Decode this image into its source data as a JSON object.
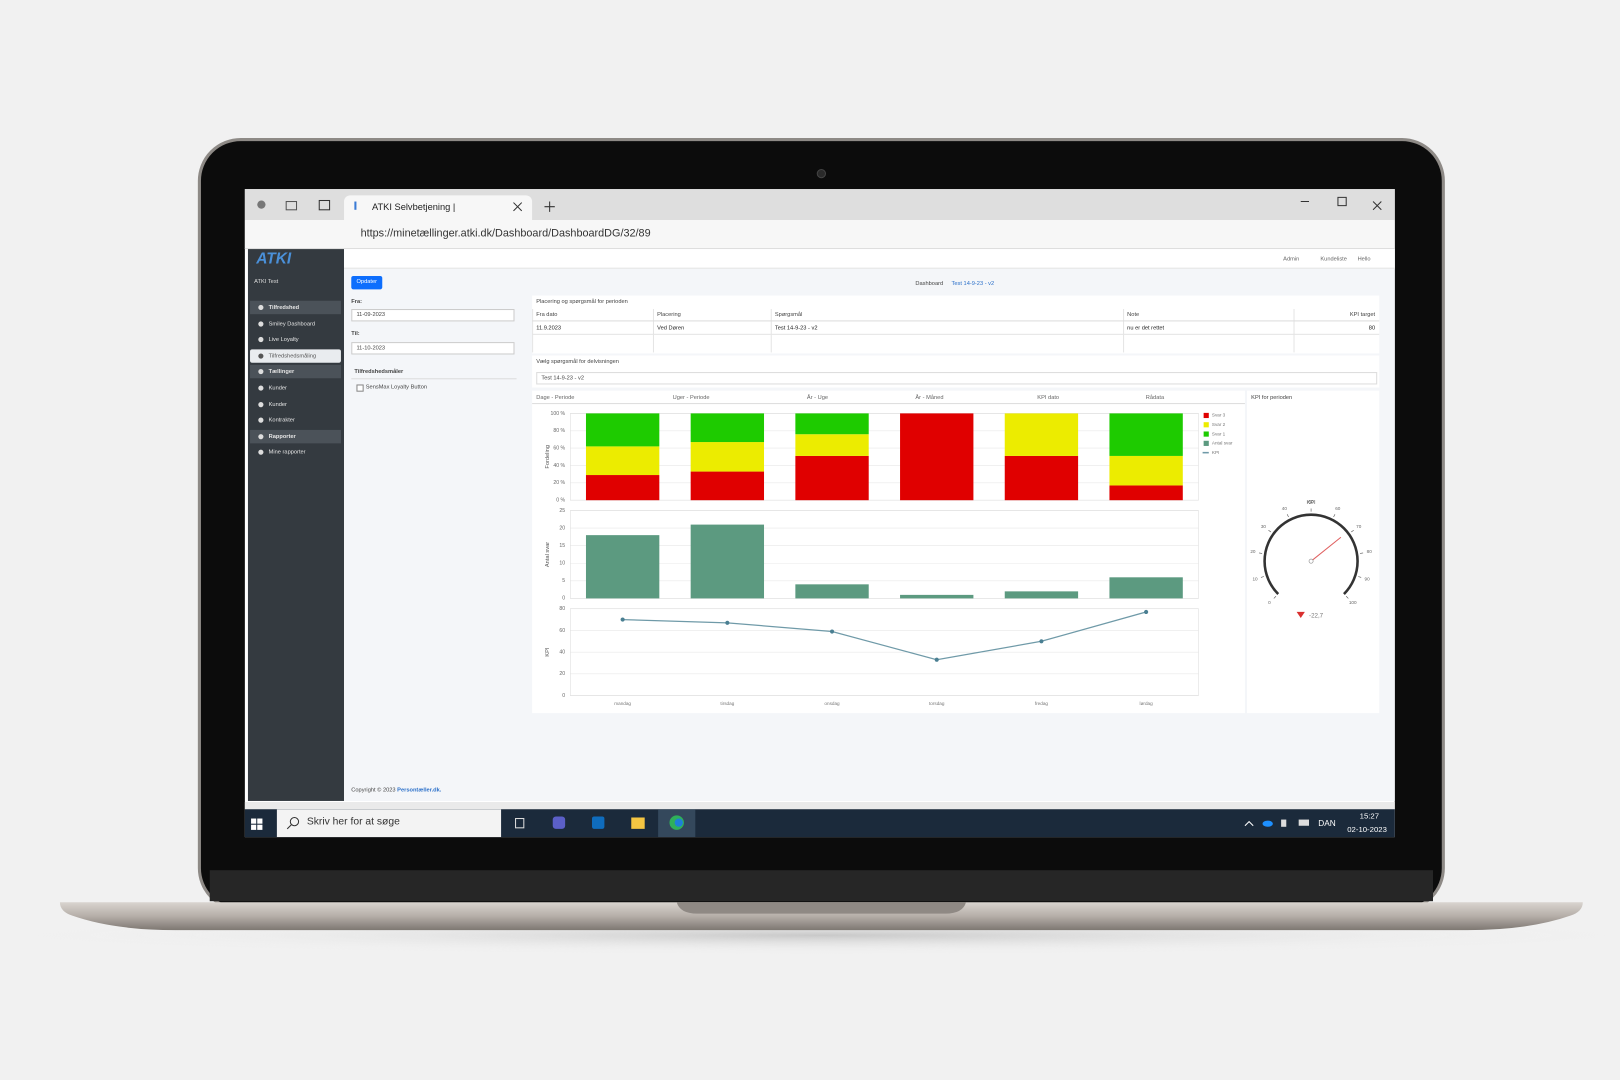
{
  "browser": {
    "tab_title": "ATKI Selvbetjening |",
    "url": "https://minetællinger.atki.dk/Dashboard/DashboardDG/32/89"
  },
  "topbar": {
    "links": [
      "Admin",
      "Kundeliste",
      "Hello"
    ]
  },
  "sidebar": {
    "logo": "ATKI",
    "user": "ATKI Test",
    "items": [
      {
        "label": "Tilfredshed",
        "section": true
      },
      {
        "label": "Smiley Dashboard"
      },
      {
        "label": "Live Loyalty"
      },
      {
        "label": "Tilfredshedsmåling",
        "active": true
      },
      {
        "label": "Tællinger",
        "section": true
      },
      {
        "label": "Kunder"
      },
      {
        "label": "Kunder"
      },
      {
        "label": "Kontrakter"
      },
      {
        "label": "Rapporter",
        "section": true
      },
      {
        "label": "Mine rapporter"
      }
    ]
  },
  "filters": {
    "button": "Opdater",
    "from_label": "Fra:",
    "from": "11-09-2023",
    "to_label": "Til:",
    "to": "11-10-2023",
    "group": "Tilfredshedsmåler",
    "option": "SensMax Loyalty Button"
  },
  "breadcrumb": [
    "Dashboard",
    "Test 14-9-23 - v2"
  ],
  "table": {
    "title": "Placering og spørgsmål for perioden",
    "headers": [
      "Fra dato",
      "Placering",
      "Spørgsmål",
      "Note",
      "KPI target"
    ],
    "rows": [
      [
        "11.9.2023",
        "Ved Døren",
        "Test 14-9-23 - v2",
        "nu er det rettet",
        "80"
      ]
    ]
  },
  "question": {
    "label": "Vælg spørgsmål for delvisningen",
    "selected": "Test 14-9-23 - v2"
  },
  "tabs": [
    "Dage - Periode",
    "Uger - Periode",
    "År - Uge",
    "År - Måned",
    "KPI dato",
    "Rådata"
  ],
  "kpi_panel_title": "KPI for perioden",
  "chart_data": [
    {
      "type": "stacked-bar",
      "ylabel": "Fordeling",
      "series": [
        {
          "name": "Svar 3",
          "color": "#e00000",
          "values": [
            29,
            33,
            51,
            100,
            51,
            17
          ]
        },
        {
          "name": "Svar 2",
          "color": "#ecec00",
          "values": [
            33,
            34,
            25,
            0,
            49,
            34
          ]
        },
        {
          "name": "Svar 1",
          "color": "#1ecb00",
          "values": [
            38,
            33,
            24,
            0,
            0,
            49
          ]
        }
      ],
      "ylim": [
        0,
        100
      ],
      "yticks": [
        {
          "value": 0,
          "label": "0 %"
        },
        {
          "value": 20,
          "label": "20 %"
        },
        {
          "value": 40,
          "label": "40 %"
        },
        {
          "value": 60,
          "label": "60 %"
        },
        {
          "value": 80,
          "label": "80 %"
        },
        {
          "value": 100,
          "label": "100 %"
        }
      ],
      "grid": true
    },
    {
      "type": "bar",
      "ylabel": "Antal svar",
      "series": [
        {
          "name": "Antal svar",
          "color": "#5c9a80",
          "values": [
            18,
            21,
            4,
            1,
            2,
            6
          ]
        }
      ],
      "ylim": [
        0,
        25
      ],
      "yticks": [
        0,
        5,
        10,
        15,
        20,
        25
      ],
      "grid": true
    },
    {
      "type": "line",
      "ylabel": "KPI",
      "categories": [
        "mandag",
        "tirsdag",
        "onsdag",
        "torsdag",
        "fredag",
        "lørdag"
      ],
      "series": [
        {
          "name": "KPI",
          "color": "#6f9aa8",
          "values": [
            70,
            67,
            59,
            33,
            50,
            77
          ]
        }
      ],
      "ylim": [
        0,
        80
      ],
      "yticks": [
        0,
        20,
        40,
        60,
        80
      ],
      "grid": true
    },
    {
      "type": "gauge",
      "title": "KPI",
      "value": 69,
      "ylim": [
        0,
        100
      ],
      "yticks": [
        0,
        10,
        20,
        30,
        40,
        50,
        60,
        70,
        80,
        90,
        100
      ],
      "color": "#e06060",
      "delta": "-22,7"
    }
  ],
  "footer": {
    "copyright": "Copyright © 2023 ",
    "link": "Persontæller.dk."
  },
  "taskbar": {
    "search": "Skriv her for at søge",
    "lang": "DAN",
    "time": "15:27",
    "date": "02-10-2023"
  }
}
